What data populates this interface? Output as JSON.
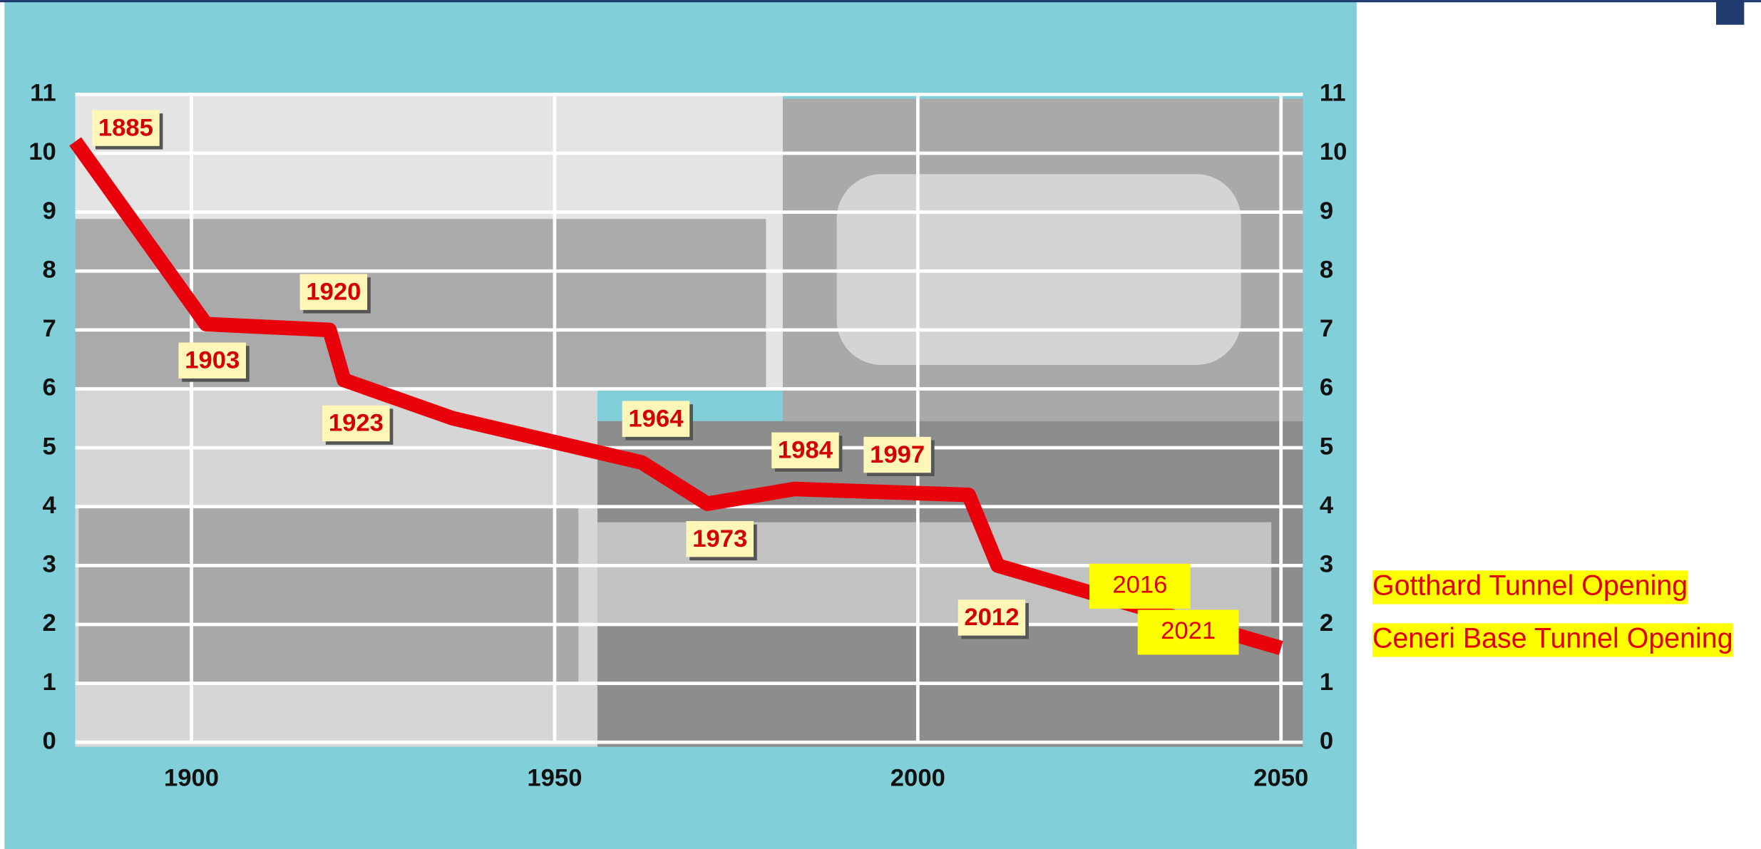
{
  "chart_data": {
    "type": "line",
    "x": [
      1884,
      1902,
      1919,
      1921,
      1936,
      1962,
      1971,
      1983,
      2007,
      2011,
      2050
    ],
    "values": [
      10.2,
      7.1,
      7.0,
      6.15,
      5.5,
      4.75,
      4.05,
      4.3,
      4.2,
      3.0,
      1.6
    ],
    "color": "#e8000b",
    "xlim": [
      1884,
      2053
    ],
    "ylim": [
      0,
      11
    ],
    "xticks": [
      1900,
      1950,
      2000,
      2050
    ],
    "yticks": [
      0,
      1,
      2,
      3,
      4,
      5,
      6,
      7,
      8,
      9,
      10,
      11
    ],
    "grid": true,
    "annotations": [
      "1885",
      "1903",
      "1920",
      "1923",
      "1964",
      "1973",
      "1984",
      "1997",
      "2012",
      "2016",
      "2021"
    ],
    "side_labels": [
      "Gotthard Tunnel Opening",
      "Ceneri Base Tunnel Opening"
    ]
  }
}
